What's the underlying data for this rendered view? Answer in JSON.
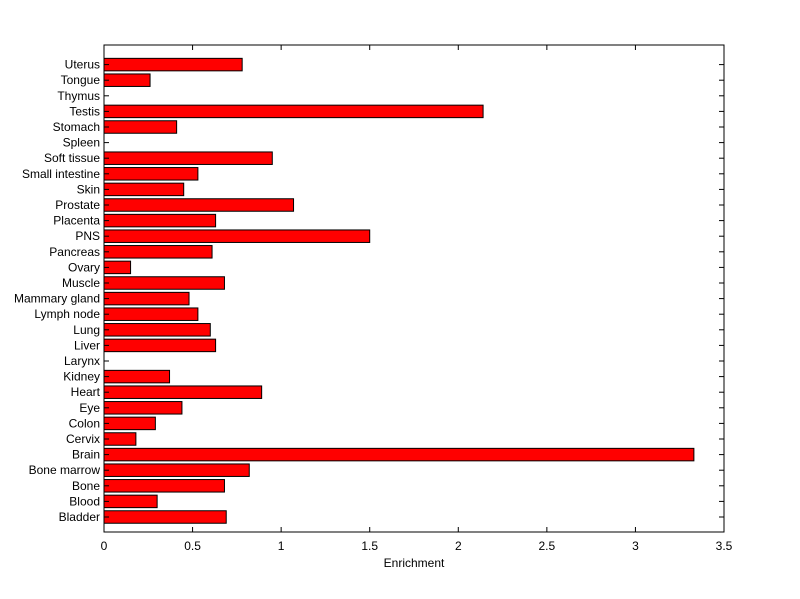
{
  "chart_data": {
    "type": "bar",
    "orientation": "horizontal",
    "title": "",
    "xlabel": "Enrichment",
    "ylabel": "",
    "xlim": [
      0,
      3.5
    ],
    "xticks": [
      "0",
      "0.5",
      "1",
      "1.5",
      "2",
      "2.5",
      "3",
      "3.5"
    ],
    "grid": false,
    "bar_color": "#ff0000",
    "categories": [
      "Bladder",
      "Blood",
      "Bone",
      "Bone marrow",
      "Brain",
      "Cervix",
      "Colon",
      "Eye",
      "Heart",
      "Kidney",
      "Larynx",
      "Liver",
      "Lung",
      "Lymph node",
      "Mammary gland",
      "Muscle",
      "Ovary",
      "Pancreas",
      "PNS",
      "Placenta",
      "Prostate",
      "Skin",
      "Small intestine",
      "Soft tissue",
      "Spleen",
      "Stomach",
      "Testis",
      "Thymus",
      "Tongue",
      "Uterus"
    ],
    "values": [
      0.69,
      0.3,
      0.68,
      0.82,
      3.33,
      0.18,
      0.29,
      0.44,
      0.89,
      0.37,
      0.0,
      0.63,
      0.6,
      0.53,
      0.48,
      0.68,
      0.15,
      0.61,
      1.5,
      0.63,
      1.07,
      0.45,
      0.53,
      0.95,
      0.0,
      0.41,
      2.14,
      0.0,
      0.26,
      0.78
    ]
  }
}
